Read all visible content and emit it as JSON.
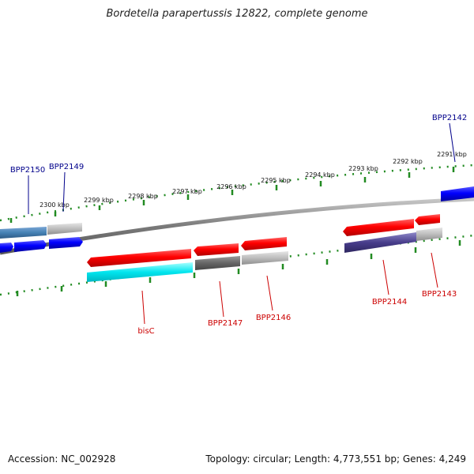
{
  "title": "Bordetella parapertussis 12822, complete genome",
  "accession": "Accession: NC_002928",
  "topology": "Topology: circular; Length: 4,773,551 bp; Genes: 4,249",
  "colors": {
    "forward_label": "#00008b",
    "reverse_label": "#cc0000",
    "scale_ticks": "#228b22",
    "backbone": "#808080"
  },
  "scale_labels": [
    "2300 kbp",
    "2299 kbp",
    "2298 kbp",
    "2297 kbp",
    "2296 kbp",
    "2295 kbp",
    "2294 kbp",
    "2293 kbp",
    "2292 kbp",
    "2291 kbp"
  ],
  "forward_genes": [
    "BPP2150",
    "BPP2149",
    "BPP2142"
  ],
  "reverse_genes": [
    "bisC",
    "BPP2147",
    "BPP2146",
    "BPP2144",
    "BPP2143"
  ]
}
